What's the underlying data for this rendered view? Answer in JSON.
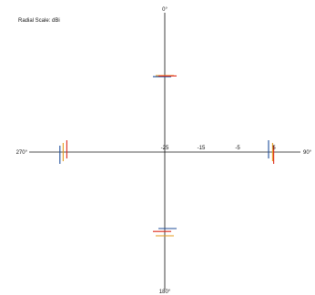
{
  "chart_data": {
    "type": "polar",
    "title": "Radial Scale: dBi",
    "radial_unit": "dBi",
    "radial_range": [
      -25,
      8
    ],
    "radial_ticks": [
      {
        "value": -25,
        "label": "-25"
      },
      {
        "value": -15,
        "label": "-15"
      },
      {
        "value": -5,
        "label": "-5"
      },
      {
        "value": 5,
        "label": "5"
      }
    ],
    "angle_labels": [
      {
        "angle": 0,
        "label": "0°"
      },
      {
        "angle": 90,
        "label": "90°"
      },
      {
        "angle": 180,
        "label": "180°"
      },
      {
        "angle": 270,
        "label": "270°"
      }
    ],
    "series": [
      {
        "color": "#1f4e9a",
        "points": [
          [
            0,
            -4.3
          ],
          [
            90,
            3.5
          ],
          [
            180,
            -4.0
          ],
          [
            270,
            3.8
          ]
        ]
      },
      {
        "color": "#e69b1c",
        "points": [
          [
            0,
            -4.0
          ],
          [
            90,
            4.6
          ],
          [
            180,
            -2.0
          ],
          [
            270,
            2.9
          ]
        ]
      },
      {
        "color": "#dd2b1c",
        "points": [
          [
            0,
            -4.1
          ],
          [
            90,
            4.9
          ],
          [
            180,
            -3.2
          ],
          [
            270,
            1.9
          ]
        ]
      }
    ]
  }
}
